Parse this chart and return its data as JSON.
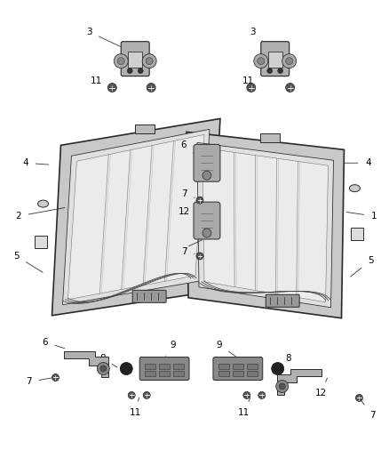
{
  "bg_color": "#ffffff",
  "line_color": "#2a2a2a",
  "figsize": [
    4.38,
    5.33
  ],
  "dpi": 100,
  "panel_fill": "#d8d8d8",
  "panel_edge": "#222222",
  "inner_fill": "#e8e8e8",
  "rib_color": "#555555",
  "label_fs": 7.5,
  "lw_main": 1.2,
  "lw_inner": 0.7,
  "lw_leader": 0.6
}
